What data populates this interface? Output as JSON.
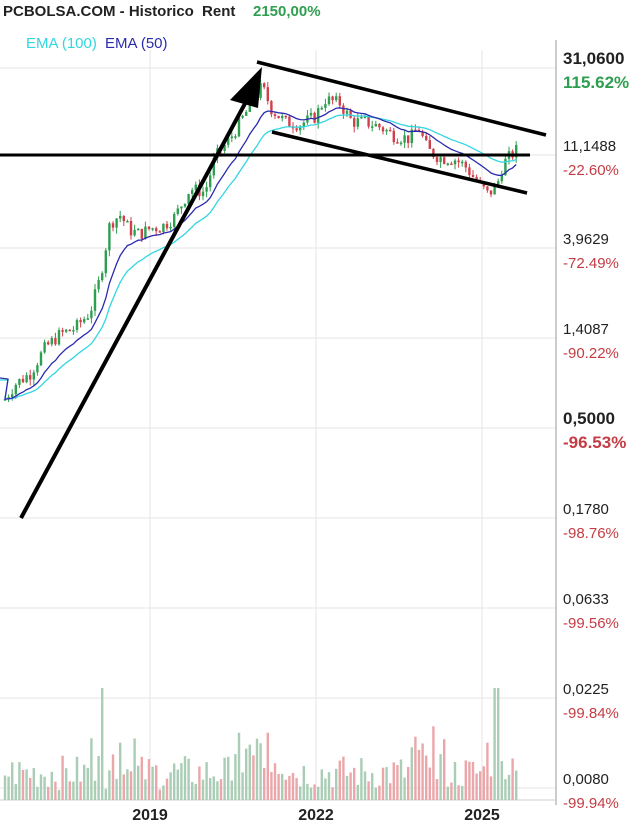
{
  "header": {
    "source": "PCBOLSA.COM - Historico",
    "rent_label": "Rent",
    "rent_value": "2150,00%",
    "rent_color": "#2e9e4f"
  },
  "legend": [
    {
      "label": "EMA (100)",
      "color": "#33d6e0"
    },
    {
      "label": "EMA (50)",
      "color": "#2b2bb0"
    }
  ],
  "chart_data": {
    "type": "candlestick",
    "x_ticks": [
      "2019",
      "2022",
      "2025"
    ],
    "y_scale": "log",
    "y_ticks": [
      {
        "price": "31,0600",
        "pct": "115.62%",
        "bold": true
      },
      {
        "price": "11,1488",
        "pct": "-22.60%"
      },
      {
        "price": "3,9629",
        "pct": "-72.49%"
      },
      {
        "price": "1,4087",
        "pct": "-90.22%"
      },
      {
        "price": "0,5000",
        "pct": "-96.53%",
        "bold": true
      },
      {
        "price": "0,1780",
        "pct": "-98.76%"
      },
      {
        "price": "0,0633",
        "pct": "-99.56%"
      },
      {
        "price": "0,0225",
        "pct": "-99.84%"
      },
      {
        "price": "0,0080",
        "pct": "-99.94%"
      }
    ],
    "up_color": "#2e9e4f",
    "down_color": "#d0404a",
    "grid": true,
    "annotations": [
      "upward arrow",
      "descending channel",
      "horizontal support line"
    ]
  }
}
